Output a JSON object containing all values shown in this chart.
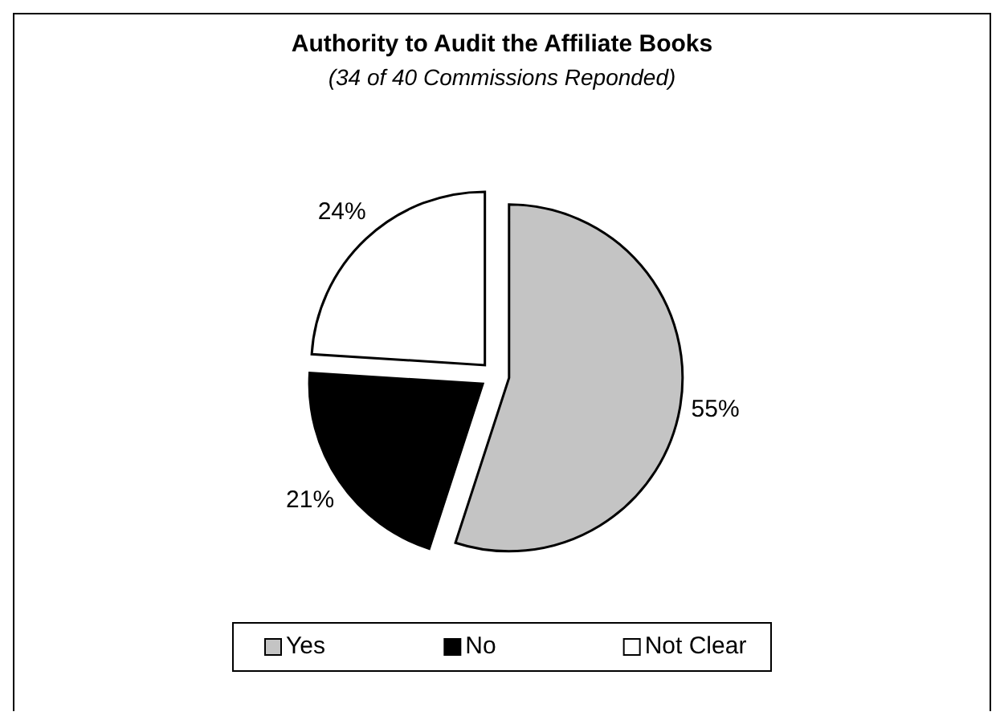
{
  "chart_data": {
    "type": "pie",
    "title": "Authority to Audit the Affiliate Books",
    "subtitle": "(34 of 40 Commissions Reponded)",
    "categories": [
      "Yes",
      "No",
      "Not Clear"
    ],
    "values": [
      55,
      21,
      24
    ],
    "colors": [
      "#c4c4c4",
      "#000000",
      "#ffffff"
    ],
    "value_labels": [
      "55%",
      "21%",
      "24%"
    ],
    "legend": "bottom"
  }
}
